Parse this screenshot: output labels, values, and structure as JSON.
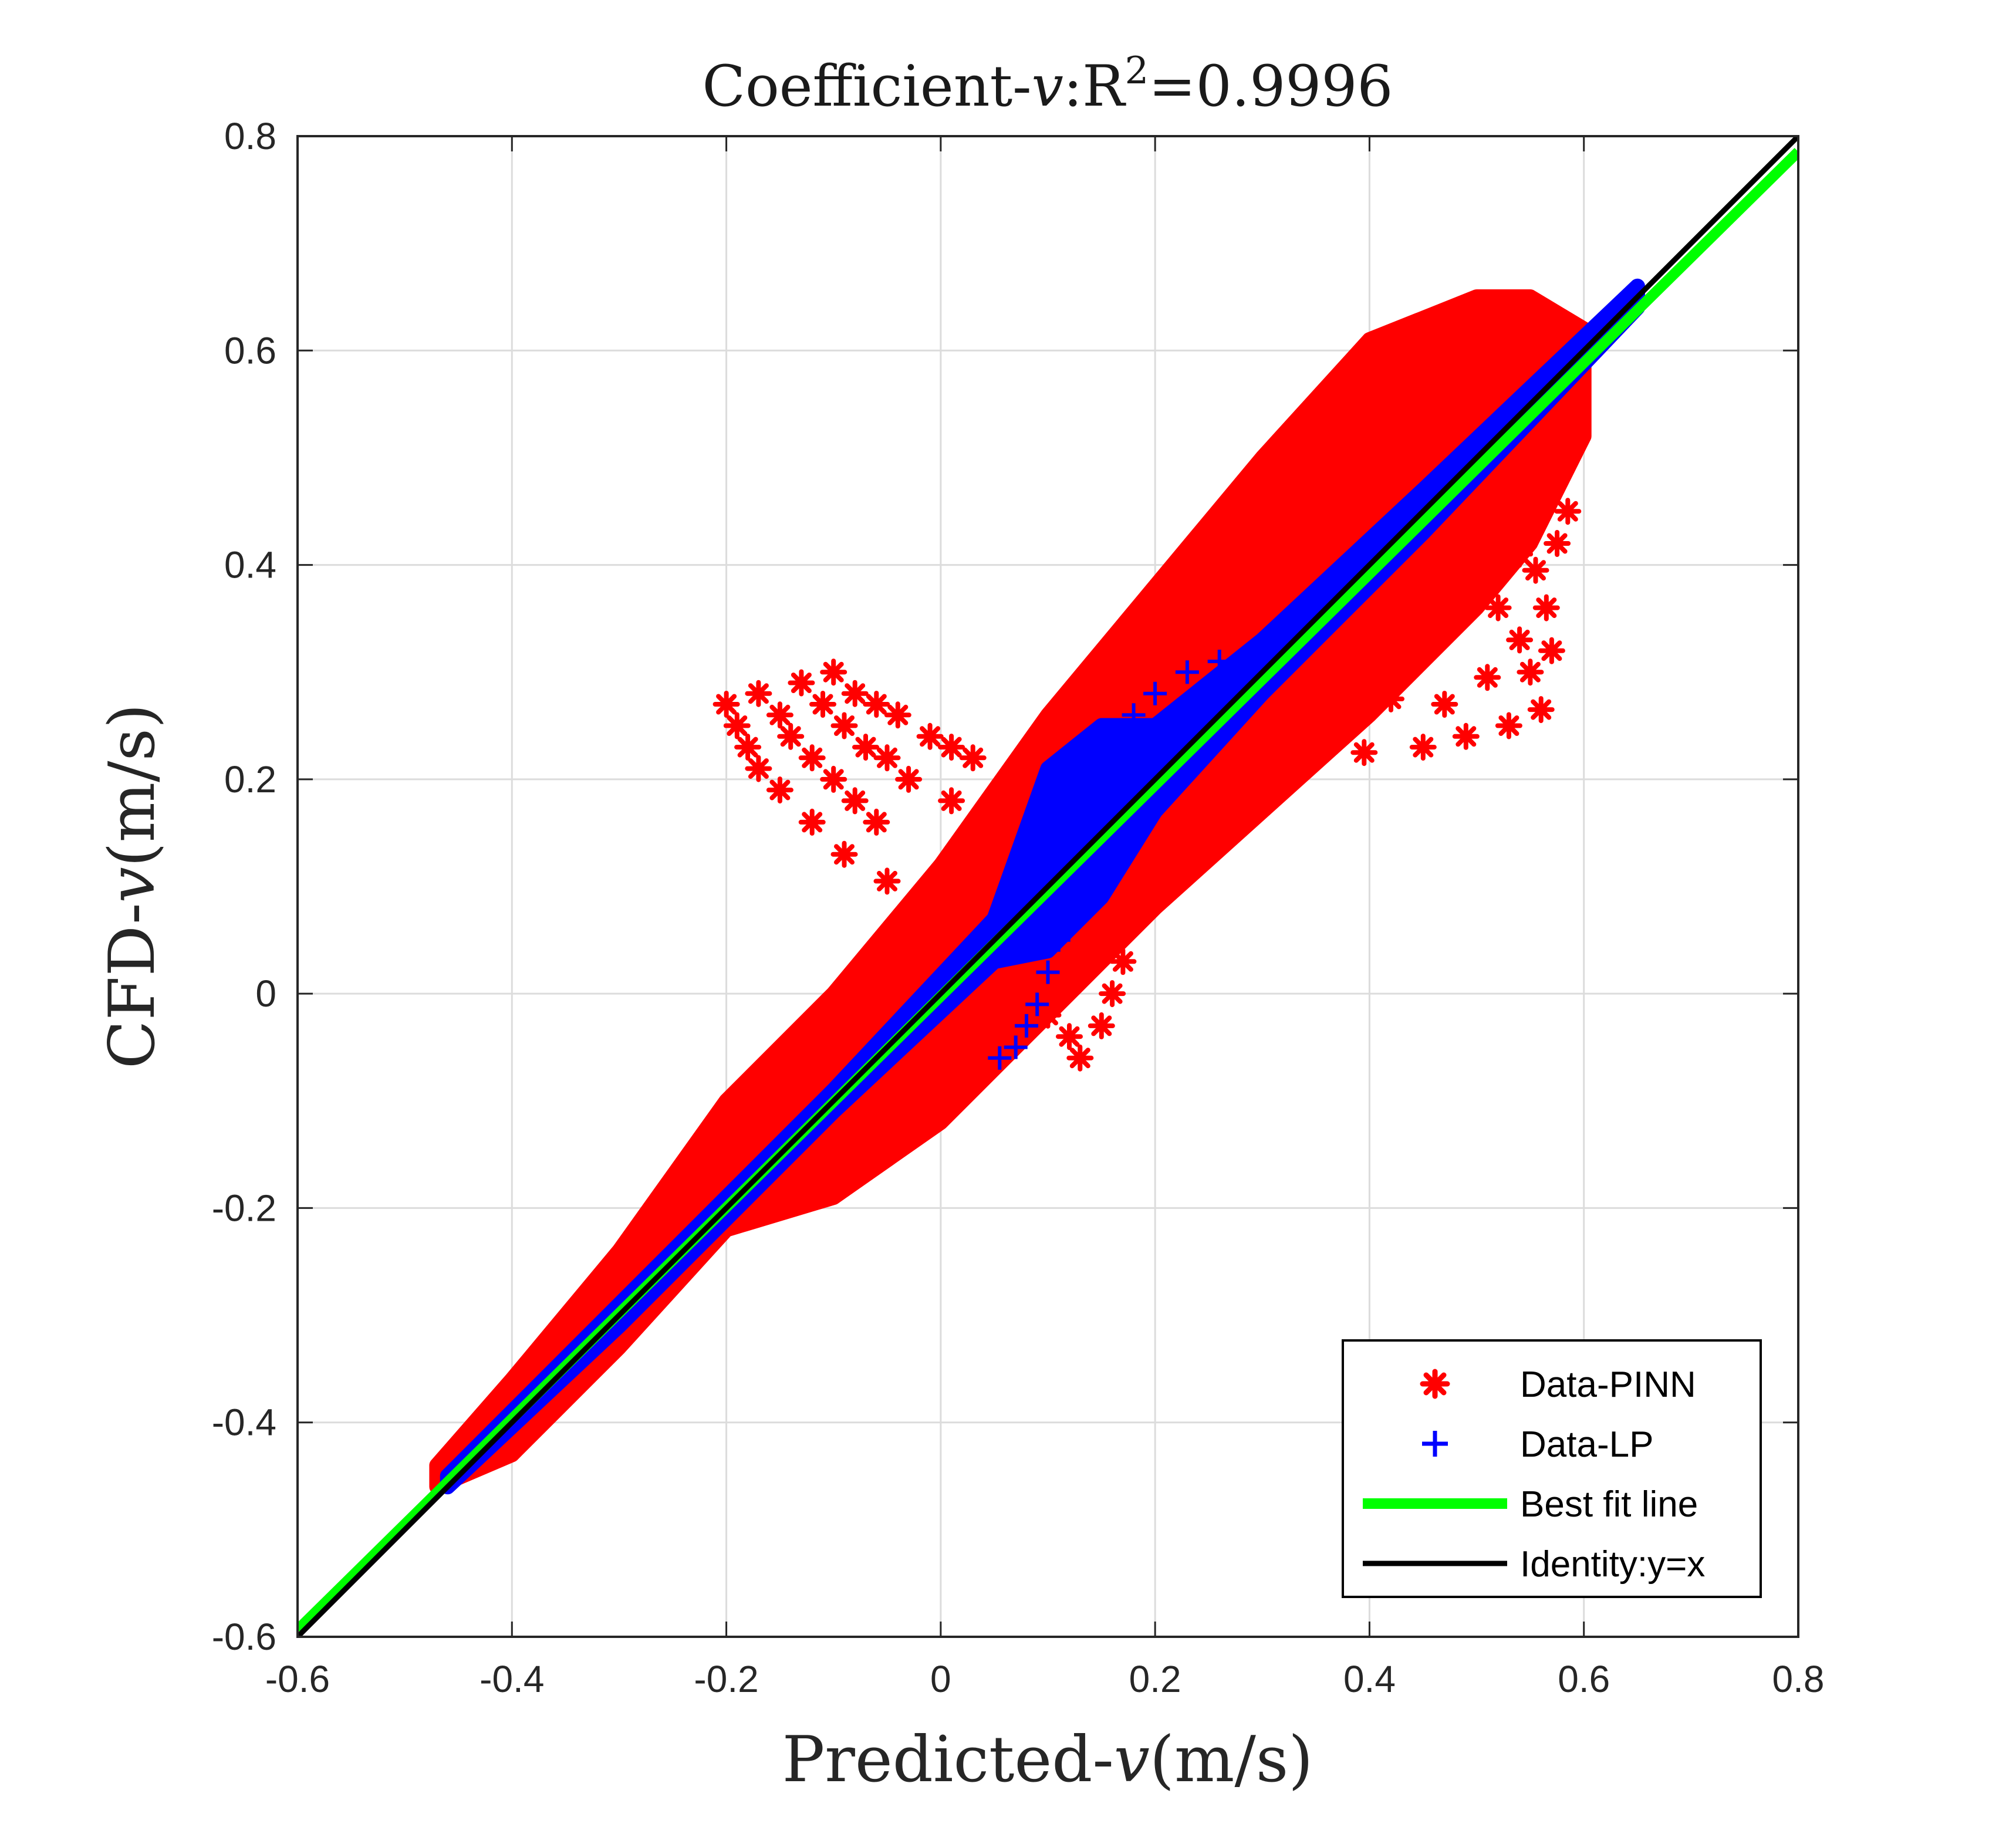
{
  "chart_data": {
    "type": "scatter",
    "title": {
      "prefix": "Coefficient-",
      "var": "v",
      "mid": ":R",
      "sup": "2",
      "suffix": "=0.9996"
    },
    "xlabel": {
      "prefix": "Predicted-",
      "var": "v",
      "suffix": "(m/s)"
    },
    "ylabel": {
      "prefix": "CFD-",
      "var": "v",
      "suffix": "(m/s)"
    },
    "xlim": [
      -0.6,
      0.8
    ],
    "ylim": [
      -0.6,
      0.8
    ],
    "x_ticks": [
      -0.6,
      -0.4,
      -0.2,
      0,
      0.2,
      0.4,
      0.6,
      0.8
    ],
    "y_ticks": [
      -0.6,
      -0.4,
      -0.2,
      0,
      0.2,
      0.4,
      0.6,
      0.8
    ],
    "x_tick_labels": [
      "-0.6",
      "-0.4",
      "-0.2",
      "0",
      "0.2",
      "0.4",
      "0.6",
      "0.8"
    ],
    "y_tick_labels": [
      "-0.6",
      "-0.4",
      "-0.2",
      "0",
      "0.2",
      "0.4",
      "0.6",
      "0.8"
    ],
    "grid": true,
    "legend_position": "bottom-right",
    "series": [
      {
        "name": "Data-PINN",
        "marker": "asterisk",
        "color": "#ff0000",
        "band": [
          [
            -0.47,
            -0.46,
            -0.44
          ],
          [
            -0.4,
            -0.43,
            -0.36
          ],
          [
            -0.3,
            -0.33,
            -0.24
          ],
          [
            -0.2,
            -0.22,
            -0.1
          ],
          [
            -0.1,
            -0.19,
            0.0
          ],
          [
            0.0,
            -0.12,
            0.12
          ],
          [
            0.1,
            -0.02,
            0.26
          ],
          [
            0.2,
            0.08,
            0.38
          ],
          [
            0.3,
            0.17,
            0.5
          ],
          [
            0.4,
            0.26,
            0.61
          ],
          [
            0.5,
            0.36,
            0.65
          ],
          [
            0.55,
            0.42,
            0.65
          ],
          [
            0.6,
            0.52,
            0.62
          ]
        ],
        "points": [
          [
            -0.2,
            0.27
          ],
          [
            -0.19,
            0.25
          ],
          [
            -0.18,
            0.23
          ],
          [
            -0.17,
            0.21
          ],
          [
            -0.15,
            0.19
          ],
          [
            -0.12,
            0.16
          ],
          [
            -0.09,
            0.13
          ],
          [
            -0.05,
            0.105
          ],
          [
            -0.17,
            0.28
          ],
          [
            -0.15,
            0.26
          ],
          [
            -0.14,
            0.24
          ],
          [
            -0.12,
            0.22
          ],
          [
            -0.1,
            0.2
          ],
          [
            -0.08,
            0.18
          ],
          [
            -0.06,
            0.16
          ],
          [
            -0.13,
            0.29
          ],
          [
            -0.11,
            0.27
          ],
          [
            -0.09,
            0.25
          ],
          [
            -0.07,
            0.23
          ],
          [
            -0.05,
            0.22
          ],
          [
            -0.03,
            0.2
          ],
          [
            0.01,
            0.18
          ],
          [
            -0.1,
            0.3
          ],
          [
            -0.08,
            0.28
          ],
          [
            -0.06,
            0.27
          ],
          [
            -0.04,
            0.26
          ],
          [
            -0.01,
            0.24
          ],
          [
            0.01,
            0.23
          ],
          [
            0.03,
            0.22
          ],
          [
            0.06,
            0.025
          ],
          [
            0.08,
            0.005
          ],
          [
            0.1,
            -0.02
          ],
          [
            0.12,
            -0.04
          ],
          [
            0.13,
            -0.06
          ],
          [
            0.15,
            -0.03
          ],
          [
            0.16,
            0.0
          ],
          [
            0.17,
            0.03
          ],
          [
            0.18,
            0.07
          ],
          [
            0.17,
            0.11
          ],
          [
            0.14,
            0.06
          ],
          [
            0.12,
            0.02
          ],
          [
            0.335,
            0.225
          ],
          [
            0.36,
            0.27
          ],
          [
            0.395,
            0.225
          ],
          [
            0.42,
            0.275
          ],
          [
            0.45,
            0.23
          ],
          [
            0.47,
            0.27
          ],
          [
            0.49,
            0.24
          ],
          [
            0.51,
            0.295
          ],
          [
            0.53,
            0.25
          ],
          [
            0.44,
            0.33
          ],
          [
            0.46,
            0.37
          ],
          [
            0.48,
            0.35
          ],
          [
            0.5,
            0.39
          ],
          [
            0.52,
            0.36
          ],
          [
            0.54,
            0.33
          ],
          [
            0.55,
            0.3
          ],
          [
            0.56,
            0.265
          ],
          [
            0.48,
            0.42
          ],
          [
            0.5,
            0.445
          ],
          [
            0.52,
            0.43
          ],
          [
            0.54,
            0.41
          ],
          [
            0.555,
            0.395
          ],
          [
            0.565,
            0.36
          ],
          [
            0.57,
            0.32
          ],
          [
            0.56,
            0.47
          ],
          [
            0.575,
            0.5
          ],
          [
            0.585,
            0.45
          ],
          [
            0.58,
            0.56
          ],
          [
            0.59,
            0.53
          ],
          [
            0.575,
            0.42
          ]
        ]
      },
      {
        "name": "Data-LP",
        "marker": "plus",
        "color": "#0000ff",
        "band": [
          [
            -0.46,
            -0.46,
            -0.45
          ],
          [
            -0.3,
            -0.31,
            -0.29
          ],
          [
            -0.1,
            -0.11,
            -0.09
          ],
          [
            0.05,
            0.03,
            0.07
          ],
          [
            0.1,
            0.04,
            0.21
          ],
          [
            0.15,
            0.09,
            0.25
          ],
          [
            0.2,
            0.17,
            0.25
          ],
          [
            0.3,
            0.28,
            0.33
          ],
          [
            0.45,
            0.43,
            0.47
          ],
          [
            0.65,
            0.64,
            0.66
          ]
        ],
        "points": [
          [
            0.055,
            -0.06
          ],
          [
            0.07,
            -0.05
          ],
          [
            0.08,
            -0.03
          ],
          [
            0.09,
            -0.01
          ],
          [
            0.1,
            0.02
          ],
          [
            0.11,
            0.05
          ],
          [
            0.12,
            0.09
          ],
          [
            0.13,
            0.13
          ],
          [
            0.14,
            0.17
          ],
          [
            0.15,
            0.2
          ],
          [
            0.16,
            0.23
          ],
          [
            0.18,
            0.26
          ],
          [
            0.2,
            0.28
          ],
          [
            0.23,
            0.3
          ],
          [
            0.26,
            0.31
          ]
        ]
      },
      {
        "name": "Best fit line",
        "line": "solid",
        "color": "#00ff00",
        "slope": 0.985,
        "intercept": -0.0025
      },
      {
        "name": "Identity:y=x",
        "line": "solid",
        "color": "#000000",
        "slope": 1,
        "intercept": 0
      }
    ]
  }
}
